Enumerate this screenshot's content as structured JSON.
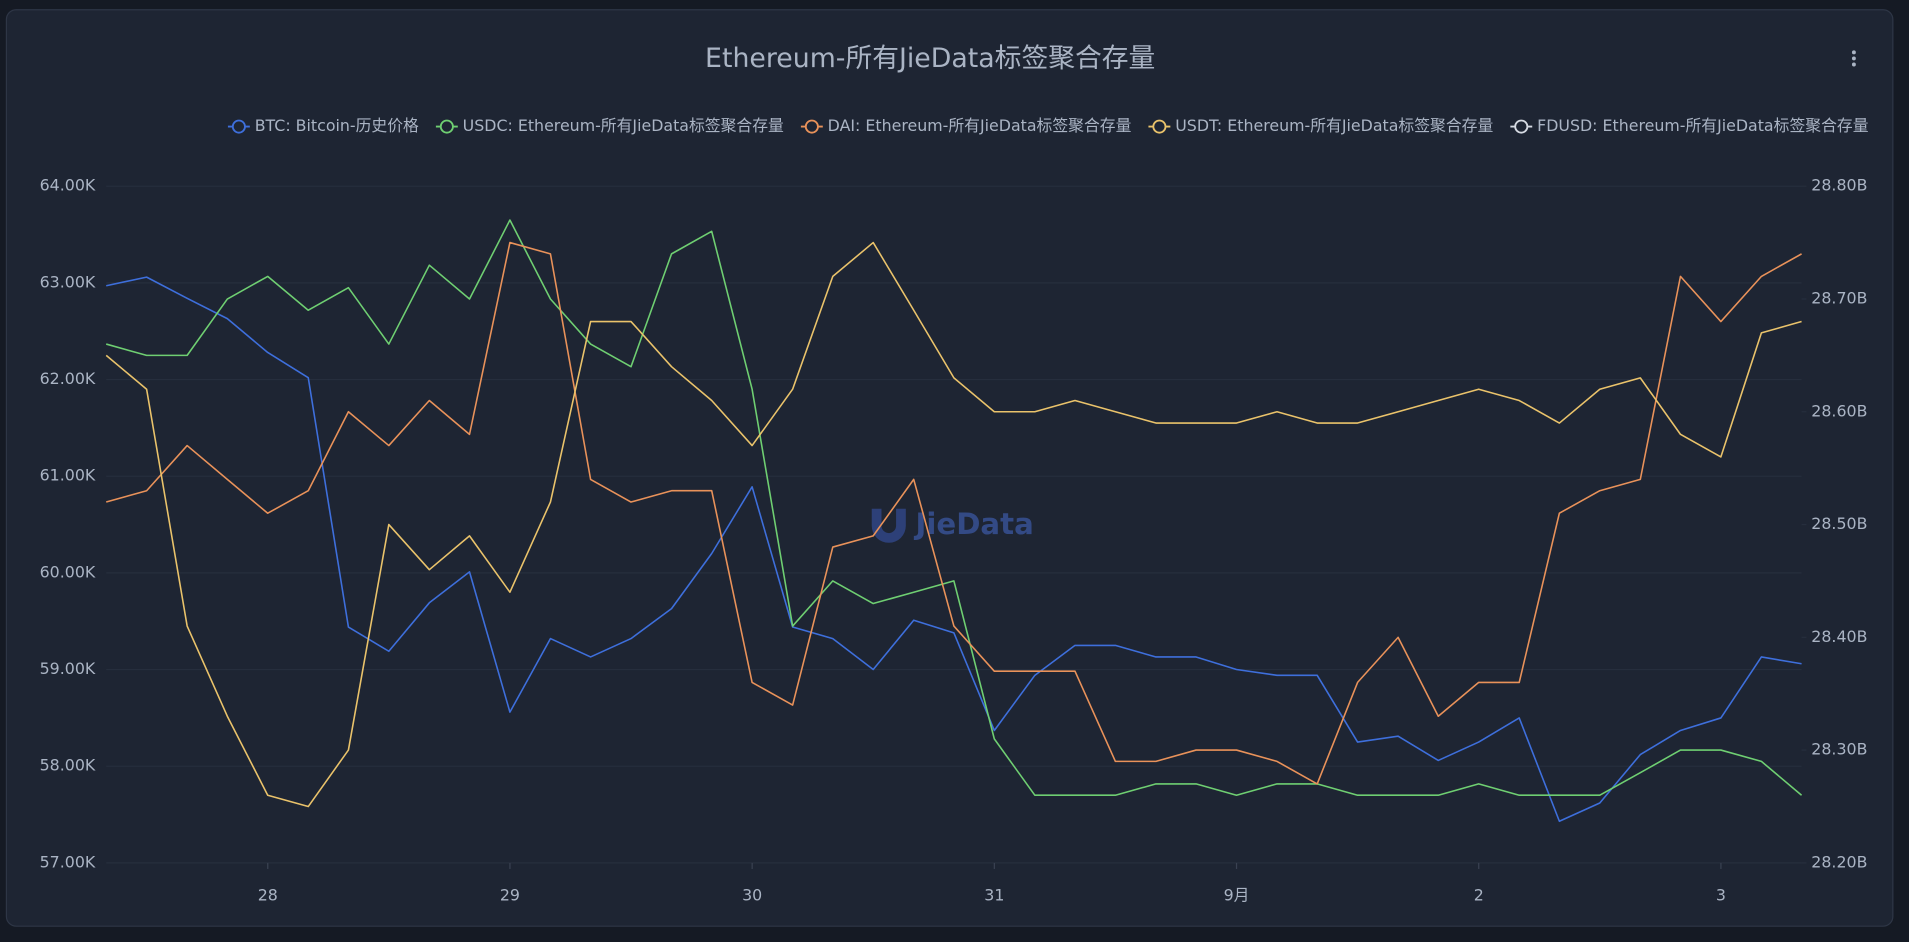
{
  "chart_data": {
    "type": "line",
    "title": "Ethereum-所有JieData标签聚合存量",
    "watermark": "JieData",
    "legend": "top-right",
    "x": [
      -0.667,
      -0.5,
      -0.333,
      -0.167,
      0,
      0.167,
      0.333,
      0.5,
      0.667,
      0.833,
      1,
      1.167,
      1.333,
      1.5,
      1.667,
      1.833,
      2,
      2.167,
      2.333,
      2.5,
      2.667,
      2.833,
      3,
      3.167,
      3.333,
      3.5,
      3.667,
      3.833,
      4,
      4.167,
      4.333,
      4.5,
      4.667,
      4.833,
      5,
      5.167,
      5.333,
      5.5,
      5.667,
      5.833,
      6,
      6.167,
      6.333
    ],
    "xlim": [
      -0.667,
      6.333
    ],
    "xticks": [
      {
        "value": 0,
        "label": "28"
      },
      {
        "value": 1,
        "label": "29"
      },
      {
        "value": 2,
        "label": "30"
      },
      {
        "value": 3,
        "label": "31"
      },
      {
        "value": 4,
        "label": "9月"
      },
      {
        "value": 5,
        "label": "2"
      },
      {
        "value": 6,
        "label": "3"
      }
    ],
    "ylim": [
      57000,
      64000
    ],
    "yticks": [
      {
        "value": 57000,
        "label": "57.00K"
      },
      {
        "value": 58000,
        "label": "58.00K"
      },
      {
        "value": 59000,
        "label": "59.00K"
      },
      {
        "value": 60000,
        "label": "60.00K"
      },
      {
        "value": 61000,
        "label": "61.00K"
      },
      {
        "value": 62000,
        "label": "62.00K"
      },
      {
        "value": 63000,
        "label": "63.00K"
      },
      {
        "value": 64000,
        "label": "64.00K"
      }
    ],
    "y2lim": [
      28.2,
      28.8
    ],
    "y2ticks": [
      {
        "value": 28.2,
        "label": "28.20B"
      },
      {
        "value": 28.3,
        "label": "28.30B"
      },
      {
        "value": 28.4,
        "label": "28.40B"
      },
      {
        "value": 28.5,
        "label": "28.50B"
      },
      {
        "value": 28.6,
        "label": "28.60B"
      },
      {
        "value": 28.7,
        "label": "28.70B"
      },
      {
        "value": 28.8,
        "label": "28.80B"
      }
    ],
    "series": [
      {
        "name": "BTC: Bitcoin-历史价格",
        "color": "#3e6fdc",
        "values": [
          62970,
          63060,
          62840,
          62630,
          62280,
          62020,
          59440,
          59190,
          59690,
          60010,
          58560,
          59320,
          59130,
          59320,
          59630,
          60200,
          60890,
          59440,
          59320,
          59000,
          59510,
          59380,
          58370,
          58940,
          59250,
          59250,
          59130,
          59130,
          59000,
          58940,
          58940,
          58250,
          58310,
          58060,
          58250,
          58500,
          57430,
          57620,
          58120,
          58370,
          58500,
          59130,
          59060
        ]
      },
      {
        "name": "USDC: Ethereum-所有JieData标签聚合存量",
        "color": "#6fcf72",
        "axis": "y2",
        "values": [
          28.66,
          28.65,
          28.65,
          28.7,
          28.72,
          28.69,
          28.71,
          28.66,
          28.73,
          28.7,
          28.77,
          28.7,
          28.66,
          28.64,
          28.74,
          28.76,
          28.62,
          28.41,
          28.45,
          28.43,
          28.44,
          28.45,
          28.31,
          28.26,
          28.26,
          28.26,
          28.27,
          28.27,
          28.26,
          28.27,
          28.27,
          28.26,
          28.26,
          28.26,
          28.27,
          28.26,
          28.26,
          28.26,
          28.28,
          28.3,
          28.3,
          28.29,
          28.26
        ]
      },
      {
        "name": "DAI: Ethereum-所有JieData标签聚合存量",
        "color": "#e9925a",
        "axis": "y2",
        "values": [
          28.52,
          28.53,
          28.57,
          28.54,
          28.51,
          28.53,
          28.6,
          28.57,
          28.61,
          28.58,
          28.75,
          28.74,
          28.54,
          28.52,
          28.53,
          28.53,
          28.36,
          28.34,
          28.48,
          28.49,
          28.54,
          28.41,
          28.37,
          28.37,
          28.37,
          28.29,
          28.29,
          28.3,
          28.3,
          28.29,
          28.27,
          28.36,
          28.4,
          28.33,
          28.36,
          28.36,
          28.51,
          28.53,
          28.54,
          28.72,
          28.68,
          28.72,
          28.74
        ]
      },
      {
        "name": "USDT: Ethereum-所有JieData标签聚合存量",
        "color": "#eac36b",
        "axis": "y2",
        "values": [
          28.65,
          28.62,
          28.41,
          28.33,
          28.26,
          28.25,
          28.3,
          28.5,
          28.46,
          28.49,
          28.44,
          28.52,
          28.68,
          28.68,
          28.64,
          28.61,
          28.57,
          28.62,
          28.72,
          28.75,
          28.69,
          28.63,
          28.6,
          28.6,
          28.61,
          28.6,
          28.59,
          28.59,
          28.59,
          28.6,
          28.59,
          28.59,
          28.6,
          28.61,
          28.62,
          28.61,
          28.59,
          28.62,
          28.63,
          28.58,
          28.56,
          28.67,
          28.68
        ]
      },
      {
        "name": "FDUSD: Ethereum-所有JieData标签聚合存量",
        "color": "#d6dbe3",
        "axis": "y2",
        "values": [
          null,
          null,
          null,
          null,
          null,
          null,
          null,
          null,
          null,
          null,
          null,
          null,
          null,
          null,
          null,
          null,
          null,
          null,
          null,
          null,
          null,
          null,
          null,
          null,
          null,
          null,
          null,
          null,
          null,
          null,
          null,
          null,
          null,
          null,
          null,
          null,
          null,
          null,
          null,
          null,
          null,
          null,
          null
        ]
      }
    ]
  }
}
